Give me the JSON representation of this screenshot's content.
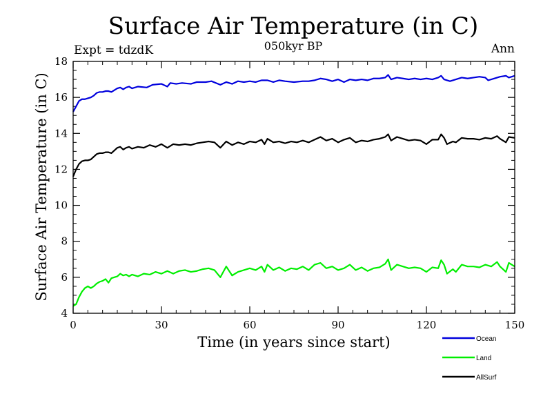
{
  "chart_data": {
    "type": "line",
    "title": "Surface Air Temperature (in C)",
    "subtitle": "050kyr BP",
    "annotation_left": "Expt = tdzdK",
    "annotation_right": "Ann",
    "xlabel": "Time (in years since start)",
    "ylabel": "Surface Air Temperature (in C)",
    "xlim": [
      0,
      150
    ],
    "ylim": [
      4,
      18
    ],
    "x_ticks": [
      0,
      30,
      60,
      90,
      120,
      150
    ],
    "y_ticks": [
      4,
      6,
      8,
      10,
      12,
      14,
      16,
      18
    ],
    "legend_position": "bottom-right, below plot",
    "series": [
      {
        "name": "Ocean",
        "color": "#0000dd",
        "points": [
          [
            0,
            15.2
          ],
          [
            1,
            15.5
          ],
          [
            2,
            15.8
          ],
          [
            3,
            15.9
          ],
          [
            4,
            15.9
          ],
          [
            5,
            15.95
          ],
          [
            6,
            16.0
          ],
          [
            7,
            16.1
          ],
          [
            8,
            16.25
          ],
          [
            9,
            16.3
          ],
          [
            10,
            16.3
          ],
          [
            11,
            16.35
          ],
          [
            12,
            16.35
          ],
          [
            13,
            16.3
          ],
          [
            14,
            16.4
          ],
          [
            15,
            16.5
          ],
          [
            16,
            16.55
          ],
          [
            17,
            16.45
          ],
          [
            18,
            16.55
          ],
          [
            19,
            16.6
          ],
          [
            20,
            16.5
          ],
          [
            22,
            16.6
          ],
          [
            25,
            16.55
          ],
          [
            27,
            16.7
          ],
          [
            30,
            16.75
          ],
          [
            32,
            16.6
          ],
          [
            33,
            16.8
          ],
          [
            35,
            16.75
          ],
          [
            37,
            16.8
          ],
          [
            40,
            16.75
          ],
          [
            42,
            16.85
          ],
          [
            45,
            16.85
          ],
          [
            47,
            16.9
          ],
          [
            50,
            16.7
          ],
          [
            52,
            16.85
          ],
          [
            54,
            16.75
          ],
          [
            56,
            16.9
          ],
          [
            58,
            16.85
          ],
          [
            60,
            16.9
          ],
          [
            62,
            16.85
          ],
          [
            64,
            16.95
          ],
          [
            66,
            16.95
          ],
          [
            68,
            16.85
          ],
          [
            70,
            16.95
          ],
          [
            72,
            16.9
          ],
          [
            75,
            16.85
          ],
          [
            78,
            16.9
          ],
          [
            80,
            16.9
          ],
          [
            82,
            16.95
          ],
          [
            84,
            17.05
          ],
          [
            86,
            17.0
          ],
          [
            88,
            16.9
          ],
          [
            90,
            17.0
          ],
          [
            92,
            16.85
          ],
          [
            94,
            17.0
          ],
          [
            96,
            16.95
          ],
          [
            98,
            17.0
          ],
          [
            100,
            16.95
          ],
          [
            102,
            17.05
          ],
          [
            104,
            17.05
          ],
          [
            106,
            17.1
          ],
          [
            107,
            17.25
          ],
          [
            108,
            17.0
          ],
          [
            110,
            17.1
          ],
          [
            112,
            17.05
          ],
          [
            114,
            17.0
          ],
          [
            116,
            17.05
          ],
          [
            118,
            17.0
          ],
          [
            120,
            17.05
          ],
          [
            122,
            17.0
          ],
          [
            124,
            17.1
          ],
          [
            125,
            17.2
          ],
          [
            126,
            17.0
          ],
          [
            128,
            16.9
          ],
          [
            130,
            17.0
          ],
          [
            132,
            17.1
          ],
          [
            134,
            17.05
          ],
          [
            136,
            17.1
          ],
          [
            138,
            17.15
          ],
          [
            140,
            17.1
          ],
          [
            141,
            16.95
          ],
          [
            143,
            17.05
          ],
          [
            145,
            17.15
          ],
          [
            147,
            17.2
          ],
          [
            148,
            17.1
          ],
          [
            150,
            17.2
          ]
        ]
      },
      {
        "name": "Land",
        "color": "#00ee00",
        "points": [
          [
            0,
            4.4
          ],
          [
            1,
            4.5
          ],
          [
            2,
            4.9
          ],
          [
            3,
            5.2
          ],
          [
            4,
            5.4
          ],
          [
            5,
            5.5
          ],
          [
            6,
            5.4
          ],
          [
            7,
            5.5
          ],
          [
            8,
            5.65
          ],
          [
            9,
            5.75
          ],
          [
            10,
            5.8
          ],
          [
            11,
            5.9
          ],
          [
            12,
            5.7
          ],
          [
            13,
            5.95
          ],
          [
            14,
            6.0
          ],
          [
            15,
            6.05
          ],
          [
            16,
            6.2
          ],
          [
            17,
            6.1
          ],
          [
            18,
            6.15
          ],
          [
            19,
            6.05
          ],
          [
            20,
            6.15
          ],
          [
            22,
            6.05
          ],
          [
            24,
            6.2
          ],
          [
            26,
            6.15
          ],
          [
            28,
            6.3
          ],
          [
            30,
            6.2
          ],
          [
            32,
            6.35
          ],
          [
            34,
            6.2
          ],
          [
            36,
            6.35
          ],
          [
            38,
            6.4
          ],
          [
            40,
            6.3
          ],
          [
            42,
            6.35
          ],
          [
            44,
            6.45
          ],
          [
            46,
            6.5
          ],
          [
            48,
            6.4
          ],
          [
            50,
            6.0
          ],
          [
            52,
            6.6
          ],
          [
            54,
            6.1
          ],
          [
            56,
            6.3
          ],
          [
            58,
            6.4
          ],
          [
            60,
            6.5
          ],
          [
            62,
            6.4
          ],
          [
            64,
            6.6
          ],
          [
            65,
            6.3
          ],
          [
            66,
            6.7
          ],
          [
            68,
            6.4
          ],
          [
            70,
            6.55
          ],
          [
            72,
            6.35
          ],
          [
            74,
            6.5
          ],
          [
            76,
            6.45
          ],
          [
            78,
            6.6
          ],
          [
            80,
            6.4
          ],
          [
            82,
            6.7
          ],
          [
            84,
            6.8
          ],
          [
            86,
            6.5
          ],
          [
            88,
            6.6
          ],
          [
            90,
            6.4
          ],
          [
            92,
            6.5
          ],
          [
            94,
            6.7
          ],
          [
            96,
            6.4
          ],
          [
            98,
            6.55
          ],
          [
            100,
            6.35
          ],
          [
            102,
            6.5
          ],
          [
            104,
            6.55
          ],
          [
            106,
            6.75
          ],
          [
            107,
            7.0
          ],
          [
            108,
            6.4
          ],
          [
            110,
            6.7
          ],
          [
            112,
            6.6
          ],
          [
            114,
            6.5
          ],
          [
            116,
            6.55
          ],
          [
            118,
            6.5
          ],
          [
            120,
            6.3
          ],
          [
            122,
            6.55
          ],
          [
            124,
            6.5
          ],
          [
            125,
            6.95
          ],
          [
            126,
            6.7
          ],
          [
            127,
            6.2
          ],
          [
            129,
            6.45
          ],
          [
            130,
            6.3
          ],
          [
            132,
            6.7
          ],
          [
            134,
            6.6
          ],
          [
            136,
            6.6
          ],
          [
            138,
            6.55
          ],
          [
            140,
            6.7
          ],
          [
            142,
            6.6
          ],
          [
            144,
            6.85
          ],
          [
            145,
            6.6
          ],
          [
            147,
            6.3
          ],
          [
            148,
            6.8
          ],
          [
            150,
            6.6
          ]
        ]
      },
      {
        "name": "AllSurf",
        "color": "#000000",
        "points": [
          [
            0,
            11.6
          ],
          [
            1,
            12.0
          ],
          [
            2,
            12.3
          ],
          [
            3,
            12.45
          ],
          [
            4,
            12.5
          ],
          [
            5,
            12.5
          ],
          [
            6,
            12.55
          ],
          [
            7,
            12.7
          ],
          [
            8,
            12.85
          ],
          [
            9,
            12.9
          ],
          [
            10,
            12.9
          ],
          [
            11,
            12.95
          ],
          [
            12,
            12.95
          ],
          [
            13,
            12.9
          ],
          [
            14,
            13.05
          ],
          [
            15,
            13.2
          ],
          [
            16,
            13.25
          ],
          [
            17,
            13.1
          ],
          [
            18,
            13.2
          ],
          [
            19,
            13.25
          ],
          [
            20,
            13.15
          ],
          [
            22,
            13.25
          ],
          [
            24,
            13.2
          ],
          [
            26,
            13.35
          ],
          [
            28,
            13.25
          ],
          [
            30,
            13.4
          ],
          [
            32,
            13.2
          ],
          [
            34,
            13.4
          ],
          [
            36,
            13.35
          ],
          [
            38,
            13.4
          ],
          [
            40,
            13.35
          ],
          [
            42,
            13.45
          ],
          [
            44,
            13.5
          ],
          [
            46,
            13.55
          ],
          [
            48,
            13.5
          ],
          [
            50,
            13.2
          ],
          [
            52,
            13.55
          ],
          [
            54,
            13.35
          ],
          [
            56,
            13.5
          ],
          [
            58,
            13.4
          ],
          [
            60,
            13.55
          ],
          [
            62,
            13.5
          ],
          [
            64,
            13.65
          ],
          [
            65,
            13.4
          ],
          [
            66,
            13.7
          ],
          [
            68,
            13.5
          ],
          [
            70,
            13.55
          ],
          [
            72,
            13.45
          ],
          [
            74,
            13.55
          ],
          [
            76,
            13.5
          ],
          [
            78,
            13.6
          ],
          [
            80,
            13.5
          ],
          [
            82,
            13.65
          ],
          [
            84,
            13.8
          ],
          [
            86,
            13.6
          ],
          [
            88,
            13.7
          ],
          [
            90,
            13.5
          ],
          [
            92,
            13.65
          ],
          [
            94,
            13.75
          ],
          [
            96,
            13.5
          ],
          [
            98,
            13.6
          ],
          [
            100,
            13.55
          ],
          [
            102,
            13.65
          ],
          [
            104,
            13.7
          ],
          [
            106,
            13.8
          ],
          [
            107,
            13.95
          ],
          [
            108,
            13.6
          ],
          [
            110,
            13.8
          ],
          [
            112,
            13.7
          ],
          [
            114,
            13.6
          ],
          [
            116,
            13.65
          ],
          [
            118,
            13.6
          ],
          [
            120,
            13.4
          ],
          [
            122,
            13.65
          ],
          [
            124,
            13.65
          ],
          [
            125,
            13.95
          ],
          [
            126,
            13.75
          ],
          [
            127,
            13.4
          ],
          [
            129,
            13.55
          ],
          [
            130,
            13.5
          ],
          [
            132,
            13.75
          ],
          [
            134,
            13.7
          ],
          [
            136,
            13.7
          ],
          [
            138,
            13.65
          ],
          [
            140,
            13.75
          ],
          [
            142,
            13.7
          ],
          [
            144,
            13.85
          ],
          [
            145,
            13.7
          ],
          [
            147,
            13.5
          ],
          [
            148,
            13.8
          ],
          [
            150,
            13.75
          ]
        ]
      }
    ]
  }
}
